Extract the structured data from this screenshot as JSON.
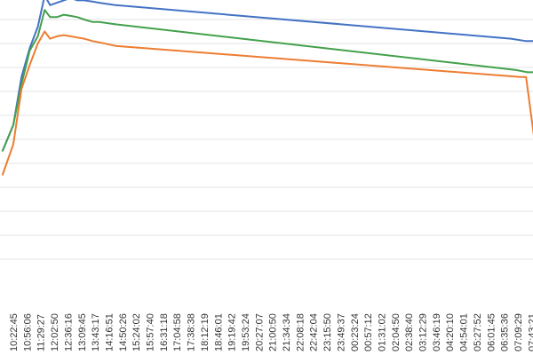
{
  "chart_data": {
    "type": "line",
    "grid": true,
    "legend": "none",
    "title": "",
    "xlabel": "",
    "ylabel": "",
    "ylim": [
      0,
      11
    ],
    "x_ticks": [
      "10:22:45",
      "10:56:06",
      "11:29:27",
      "12:02:50",
      "12:36:16",
      "13:09:45",
      "13:43:17",
      "14:16:51",
      "14:50:26",
      "15:24:02",
      "15:57:40",
      "16:31:18",
      "17:04:58",
      "17:38:38",
      "18:12:19",
      "18:46:01",
      "19:19:42",
      "19:53:24",
      "20:27:07",
      "21:00:50",
      "21:34:34",
      "22:08:18",
      "22:42:04",
      "23:15:50",
      "23:49:37",
      "00:23:24",
      "00:57:12",
      "01:31:02",
      "02:04:50",
      "02:38:40",
      "03:12:29",
      "03:46:19",
      "04:20:10",
      "04:54:01",
      "05:27:52",
      "06:01:45",
      "06:35:36",
      "07:09:29",
      "07:43:21"
    ],
    "x_range": [
      -0.8,
      39.0
    ],
    "series": [
      {
        "color": "#4472c4",
        "x": [
          -0.8,
          0.0,
          0.6,
          1.2,
          1.8,
          2.3,
          2.7,
          3.2,
          3.7,
          4.2,
          4.7,
          5.2,
          5.8,
          6.3,
          7.5,
          36.5,
          37.6,
          39.0
        ],
        "y": [
          4.5,
          5.6,
          7.6,
          8.8,
          9.7,
          11.0,
          10.6,
          10.7,
          10.8,
          10.9,
          10.8,
          10.8,
          10.75,
          10.7,
          10.6,
          9.2,
          9.1,
          9.1
        ]
      },
      {
        "color": "#43a04b",
        "x": [
          -0.8,
          0.0,
          0.6,
          1.2,
          1.8,
          2.3,
          2.7,
          3.2,
          3.7,
          4.2,
          4.7,
          5.2,
          5.8,
          6.3,
          7.5,
          36.8,
          37.7,
          39.0
        ],
        "y": [
          4.5,
          5.6,
          7.3,
          8.7,
          9.3,
          10.4,
          10.1,
          10.1,
          10.2,
          10.15,
          10.1,
          10.0,
          9.9,
          9.9,
          9.8,
          7.9,
          7.8,
          7.8
        ]
      },
      {
        "color": "#ed7d31",
        "x": [
          -0.8,
          0.0,
          0.6,
          1.2,
          1.8,
          2.3,
          2.7,
          3.2,
          3.7,
          4.2,
          4.7,
          5.2,
          5.8,
          6.3,
          7.5,
          37.2,
          37.6,
          38.4
        ],
        "y": [
          3.5,
          4.8,
          7.1,
          8.1,
          9.0,
          9.5,
          9.2,
          9.3,
          9.35,
          9.3,
          9.25,
          9.2,
          9.1,
          9.05,
          8.9,
          7.6,
          7.6,
          4.2
        ]
      }
    ]
  }
}
